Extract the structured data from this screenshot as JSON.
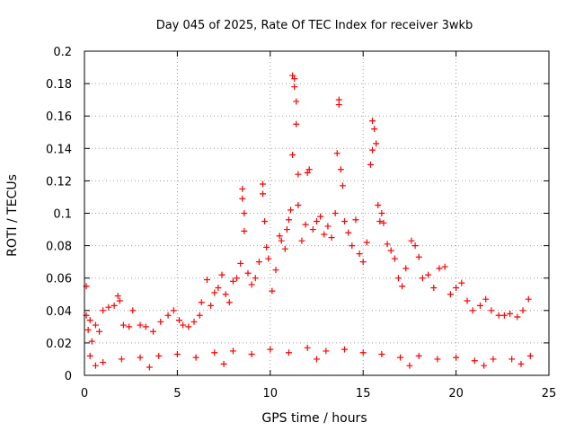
{
  "chart_data": {
    "type": "scatter",
    "title": "Day 045 of 2025, Rate Of TEC Index for receiver 3wkb",
    "xlabel": "GPS time / hours",
    "ylabel": "ROTI / TECUs",
    "xlim": [
      0,
      25
    ],
    "ylim": [
      0,
      0.2
    ],
    "x_ticks": [
      0,
      5,
      10,
      15,
      20,
      25
    ],
    "x_tick_labels": [
      "0",
      "5",
      "10",
      "15",
      "20",
      "25"
    ],
    "y_ticks": [
      0,
      0.02,
      0.04,
      0.06,
      0.08,
      0.1,
      0.12,
      0.14,
      0.16,
      0.18,
      0.2
    ],
    "y_tick_labels": [
      "0",
      "0.02",
      "0.04",
      "0.06",
      "0.08",
      "0.1",
      "0.12",
      "0.14",
      "0.16",
      "0.18",
      "0.2"
    ],
    "grid": true,
    "marker": "+",
    "series": [
      {
        "name": "ROTI",
        "color": "#ff0000",
        "points": [
          [
            0.1,
            0.055
          ],
          [
            0.1,
            0.037
          ],
          [
            0.2,
            0.028
          ],
          [
            0.3,
            0.034
          ],
          [
            0.4,
            0.021
          ],
          [
            0.6,
            0.031
          ],
          [
            0.8,
            0.027
          ],
          [
            1.0,
            0.04
          ],
          [
            1.3,
            0.042
          ],
          [
            1.6,
            0.043
          ],
          [
            1.8,
            0.049
          ],
          [
            1.9,
            0.046
          ],
          [
            2.1,
            0.031
          ],
          [
            2.4,
            0.03
          ],
          [
            2.6,
            0.04
          ],
          [
            3.0,
            0.031
          ],
          [
            3.3,
            0.03
          ],
          [
            3.7,
            0.027
          ],
          [
            4.1,
            0.033
          ],
          [
            4.5,
            0.037
          ],
          [
            4.8,
            0.04
          ],
          [
            5.1,
            0.034
          ],
          [
            5.3,
            0.031
          ],
          [
            5.6,
            0.03
          ],
          [
            5.9,
            0.033
          ],
          [
            6.2,
            0.037
          ],
          [
            6.3,
            0.045
          ],
          [
            6.6,
            0.059
          ],
          [
            6.8,
            0.043
          ],
          [
            7.0,
            0.051
          ],
          [
            7.2,
            0.054
          ],
          [
            7.4,
            0.062
          ],
          [
            7.6,
            0.05
          ],
          [
            7.8,
            0.045
          ],
          [
            8.0,
            0.058
          ],
          [
            8.2,
            0.06
          ],
          [
            8.4,
            0.069
          ],
          [
            8.5,
            0.115
          ],
          [
            8.5,
            0.109
          ],
          [
            8.6,
            0.1
          ],
          [
            8.6,
            0.089
          ],
          [
            8.8,
            0.063
          ],
          [
            9.0,
            0.056
          ],
          [
            9.2,
            0.06
          ],
          [
            9.4,
            0.07
          ],
          [
            9.6,
            0.112
          ],
          [
            9.6,
            0.118
          ],
          [
            9.7,
            0.095
          ],
          [
            9.8,
            0.079
          ],
          [
            9.9,
            0.072
          ],
          [
            10.1,
            0.052
          ],
          [
            10.3,
            0.065
          ],
          [
            10.5,
            0.086
          ],
          [
            10.6,
            0.083
          ],
          [
            10.8,
            0.078
          ],
          [
            10.9,
            0.09
          ],
          [
            11.0,
            0.096
          ],
          [
            11.1,
            0.102
          ],
          [
            11.2,
            0.136
          ],
          [
            11.2,
            0.185
          ],
          [
            11.3,
            0.183
          ],
          [
            11.3,
            0.178
          ],
          [
            11.4,
            0.169
          ],
          [
            11.4,
            0.155
          ],
          [
            11.5,
            0.124
          ],
          [
            11.5,
            0.105
          ],
          [
            11.7,
            0.083
          ],
          [
            11.9,
            0.093
          ],
          [
            12.0,
            0.125
          ],
          [
            12.1,
            0.127
          ],
          [
            12.3,
            0.09
          ],
          [
            12.5,
            0.095
          ],
          [
            12.7,
            0.098
          ],
          [
            12.9,
            0.087
          ],
          [
            13.1,
            0.092
          ],
          [
            13.3,
            0.085
          ],
          [
            13.5,
            0.1
          ],
          [
            13.6,
            0.137
          ],
          [
            13.7,
            0.17
          ],
          [
            13.7,
            0.167
          ],
          [
            13.8,
            0.127
          ],
          [
            13.9,
            0.117
          ],
          [
            14.0,
            0.095
          ],
          [
            14.2,
            0.088
          ],
          [
            14.4,
            0.08
          ],
          [
            14.6,
            0.096
          ],
          [
            14.8,
            0.075
          ],
          [
            15.0,
            0.07
          ],
          [
            15.2,
            0.082
          ],
          [
            15.4,
            0.13
          ],
          [
            15.5,
            0.139
          ],
          [
            15.5,
            0.157
          ],
          [
            15.6,
            0.152
          ],
          [
            15.7,
            0.143
          ],
          [
            15.8,
            0.105
          ],
          [
            15.9,
            0.095
          ],
          [
            16.0,
            0.1
          ],
          [
            16.1,
            0.094
          ],
          [
            16.3,
            0.081
          ],
          [
            16.5,
            0.077
          ],
          [
            16.7,
            0.072
          ],
          [
            16.9,
            0.06
          ],
          [
            17.1,
            0.055
          ],
          [
            17.3,
            0.066
          ],
          [
            17.6,
            0.083
          ],
          [
            17.8,
            0.08
          ],
          [
            18.0,
            0.073
          ],
          [
            18.2,
            0.06
          ],
          [
            18.5,
            0.062
          ],
          [
            18.8,
            0.054
          ],
          [
            19.1,
            0.066
          ],
          [
            19.4,
            0.067
          ],
          [
            19.7,
            0.05
          ],
          [
            20.0,
            0.054
          ],
          [
            20.3,
            0.057
          ],
          [
            20.6,
            0.046
          ],
          [
            20.9,
            0.04
          ],
          [
            21.3,
            0.043
          ],
          [
            21.6,
            0.047
          ],
          [
            21.9,
            0.04
          ],
          [
            22.3,
            0.037
          ],
          [
            22.6,
            0.037
          ],
          [
            22.9,
            0.038
          ],
          [
            23.3,
            0.036
          ],
          [
            23.6,
            0.04
          ],
          [
            23.9,
            0.047
          ],
          [
            0.3,
            0.012
          ],
          [
            1.0,
            0.008
          ],
          [
            2.0,
            0.01
          ],
          [
            3.0,
            0.011
          ],
          [
            4.0,
            0.012
          ],
          [
            5.0,
            0.013
          ],
          [
            6.0,
            0.011
          ],
          [
            7.0,
            0.014
          ],
          [
            8.0,
            0.015
          ],
          [
            9.0,
            0.013
          ],
          [
            10.0,
            0.016
          ],
          [
            11.0,
            0.014
          ],
          [
            12.0,
            0.017
          ],
          [
            13.0,
            0.015
          ],
          [
            14.0,
            0.016
          ],
          [
            15.0,
            0.014
          ],
          [
            16.0,
            0.013
          ],
          [
            17.0,
            0.011
          ],
          [
            18.0,
            0.012
          ],
          [
            19.0,
            0.01
          ],
          [
            20.0,
            0.011
          ],
          [
            21.0,
            0.009
          ],
          [
            22.0,
            0.01
          ],
          [
            23.0,
            0.01
          ],
          [
            24.0,
            0.012
          ],
          [
            0.6,
            0.006
          ],
          [
            3.5,
            0.005
          ],
          [
            7.5,
            0.007
          ],
          [
            12.5,
            0.01
          ],
          [
            17.5,
            0.006
          ],
          [
            21.5,
            0.006
          ],
          [
            23.5,
            0.007
          ]
        ]
      }
    ]
  }
}
